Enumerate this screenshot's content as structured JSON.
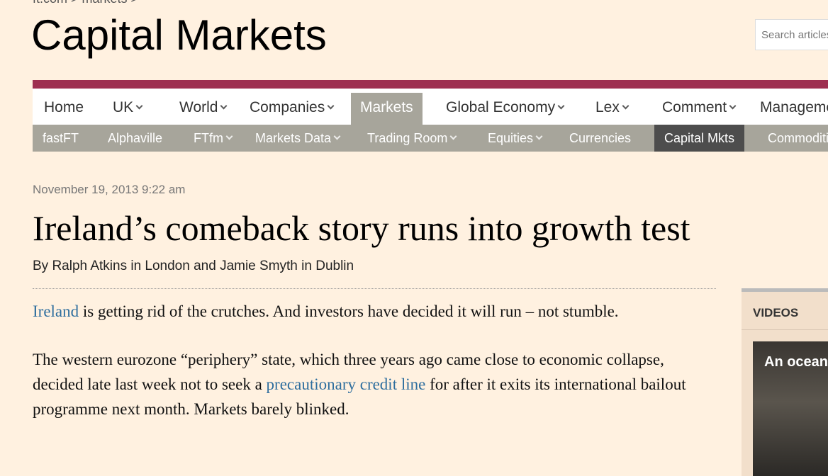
{
  "breadcrumb": "ft.com > markets >",
  "header": {
    "title": "Capital Markets",
    "search_placeholder": "Search articles"
  },
  "main_nav": [
    {
      "label": "Home",
      "dropdown": false,
      "active": false
    },
    {
      "label": "UK",
      "dropdown": true,
      "active": false
    },
    {
      "label": "World",
      "dropdown": true,
      "active": false
    },
    {
      "label": "Companies",
      "dropdown": true,
      "active": false
    },
    {
      "label": "Markets",
      "dropdown": false,
      "active": true
    },
    {
      "label": "Global Economy",
      "dropdown": true,
      "active": false
    },
    {
      "label": "Lex",
      "dropdown": true,
      "active": false
    },
    {
      "label": "Comment",
      "dropdown": true,
      "active": false
    },
    {
      "label": "Management",
      "dropdown": false,
      "active": false
    }
  ],
  "sub_nav": [
    {
      "label": "fastFT",
      "dropdown": false,
      "active": false
    },
    {
      "label": "Alphaville",
      "dropdown": false,
      "active": false
    },
    {
      "label": "FTfm",
      "dropdown": true,
      "active": false
    },
    {
      "label": "Markets Data",
      "dropdown": true,
      "active": false
    },
    {
      "label": "Trading Room",
      "dropdown": true,
      "active": false
    },
    {
      "label": "Equities",
      "dropdown": true,
      "active": false
    },
    {
      "label": "Currencies",
      "dropdown": false,
      "active": false
    },
    {
      "label": "Capital Mkts",
      "dropdown": false,
      "active": true
    },
    {
      "label": "Commodities",
      "dropdown": false,
      "active": false
    }
  ],
  "article": {
    "date": "November 19, 2013 9:22 am",
    "headline": "Ireland’s comeback story runs into growth test",
    "byline": "By Ralph Atkins in London and Jamie Smyth in Dublin",
    "paragraphs": [
      [
        {
          "text": "Ireland",
          "link": true
        },
        {
          "text": " is getting rid of the crutches. And investors have decided it will run – not stumble.",
          "link": false
        }
      ],
      [
        {
          "text": "The western eurozone “periphery” state, which three years ago came close to economic collapse, decided late last week not to seek a ",
          "link": false
        },
        {
          "text": "precautionary credit line",
          "link": true
        },
        {
          "text": " for after it exits its international bailout programme next month. Markets barely blinked.",
          "link": false
        }
      ]
    ]
  },
  "sidebar": {
    "heading": "VIDEOS",
    "video_title": "An ocean"
  }
}
